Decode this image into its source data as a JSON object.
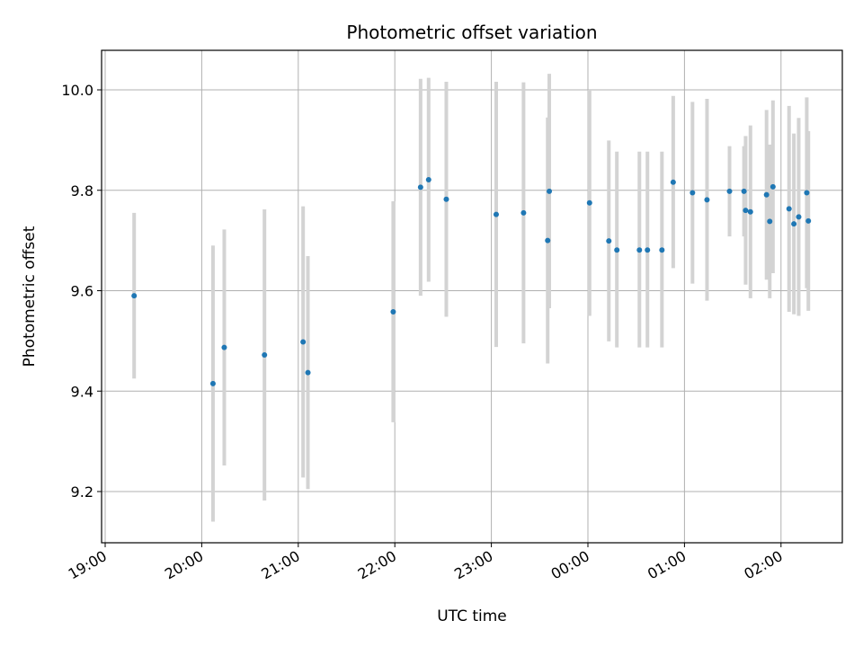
{
  "chart_data": {
    "type": "scatter",
    "title": "Photometric offset variation",
    "xlabel": "UTC time",
    "ylabel": "Photometric offset",
    "x_ticks": [
      "19:00",
      "20:00",
      "21:00",
      "22:00",
      "23:00",
      "00:00",
      "01:00",
      "02:00"
    ],
    "y_ticks": [
      "9.2",
      "9.4",
      "9.6",
      "9.8",
      "10.0"
    ],
    "xlim": [
      "19:00",
      "02:42"
    ],
    "ylim": [
      9.1,
      10.08
    ],
    "grid": true,
    "marker_color": "#1f77b4",
    "errorbar_color": "#d3d3d3",
    "points": [
      {
        "time": "19:18",
        "y": 9.59,
        "ylo": 9.425,
        "yhi": 9.755
      },
      {
        "time": "20:07",
        "y": 9.415,
        "ylo": 9.14,
        "yhi": 9.69
      },
      {
        "time": "20:14",
        "y": 9.487,
        "ylo": 9.252,
        "yhi": 9.722
      },
      {
        "time": "20:39",
        "y": 9.472,
        "ylo": 9.182,
        "yhi": 9.762
      },
      {
        "time": "21:03",
        "y": 9.498,
        "ylo": 9.228,
        "yhi": 9.768
      },
      {
        "time": "21:06",
        "y": 9.437,
        "ylo": 9.205,
        "yhi": 9.669
      },
      {
        "time": "21:59",
        "y": 9.558,
        "ylo": 9.338,
        "yhi": 9.778
      },
      {
        "time": "22:16",
        "y": 9.806,
        "ylo": 9.59,
        "yhi": 10.022
      },
      {
        "time": "22:21",
        "y": 9.821,
        "ylo": 9.618,
        "yhi": 10.024
      },
      {
        "time": "22:32",
        "y": 9.782,
        "ylo": 9.548,
        "yhi": 10.016
      },
      {
        "time": "23:03",
        "y": 9.752,
        "ylo": 9.488,
        "yhi": 10.016
      },
      {
        "time": "23:20",
        "y": 9.755,
        "ylo": 9.495,
        "yhi": 10.015
      },
      {
        "time": "23:35",
        "y": 9.7,
        "ylo": 9.455,
        "yhi": 9.945
      },
      {
        "time": "23:36",
        "y": 9.798,
        "ylo": 9.565,
        "yhi": 10.032
      },
      {
        "time": "00:01",
        "y": 9.775,
        "ylo": 9.55,
        "yhi": 10.0
      },
      {
        "time": "00:13",
        "y": 9.699,
        "ylo": 9.499,
        "yhi": 9.899
      },
      {
        "time": "00:18",
        "y": 9.681,
        "ylo": 9.487,
        "yhi": 9.877
      },
      {
        "time": "00:32",
        "y": 9.681,
        "ylo": 9.487,
        "yhi": 9.877
      },
      {
        "time": "00:37",
        "y": 9.681,
        "ylo": 9.487,
        "yhi": 9.877
      },
      {
        "time": "00:46",
        "y": 9.681,
        "ylo": 9.487,
        "yhi": 9.877
      },
      {
        "time": "00:53",
        "y": 9.816,
        "ylo": 9.645,
        "yhi": 9.988
      },
      {
        "time": "01:05",
        "y": 9.795,
        "ylo": 9.614,
        "yhi": 9.976
      },
      {
        "time": "01:14",
        "y": 9.781,
        "ylo": 9.58,
        "yhi": 9.982
      },
      {
        "time": "01:28",
        "y": 9.798,
        "ylo": 9.708,
        "yhi": 9.888
      },
      {
        "time": "01:37",
        "y": 9.798,
        "ylo": 9.708,
        "yhi": 9.888
      },
      {
        "time": "01:38",
        "y": 9.76,
        "ylo": 9.612,
        "yhi": 9.908
      },
      {
        "time": "01:41",
        "y": 9.757,
        "ylo": 9.585,
        "yhi": 9.929
      },
      {
        "time": "01:51",
        "y": 9.791,
        "ylo": 9.622,
        "yhi": 9.96
      },
      {
        "time": "01:53",
        "y": 9.738,
        "ylo": 9.585,
        "yhi": 9.891
      },
      {
        "time": "01:55",
        "y": 9.807,
        "ylo": 9.635,
        "yhi": 9.979
      },
      {
        "time": "02:05",
        "y": 9.763,
        "ylo": 9.558,
        "yhi": 9.968
      },
      {
        "time": "02:08",
        "y": 9.733,
        "ylo": 9.553,
        "yhi": 9.913
      },
      {
        "time": "02:11",
        "y": 9.747,
        "ylo": 9.55,
        "yhi": 9.944
      },
      {
        "time": "02:16",
        "y": 9.795,
        "ylo": 9.605,
        "yhi": 9.985
      },
      {
        "time": "02:17",
        "y": 9.739,
        "ylo": 9.56,
        "yhi": 9.918
      }
    ]
  }
}
